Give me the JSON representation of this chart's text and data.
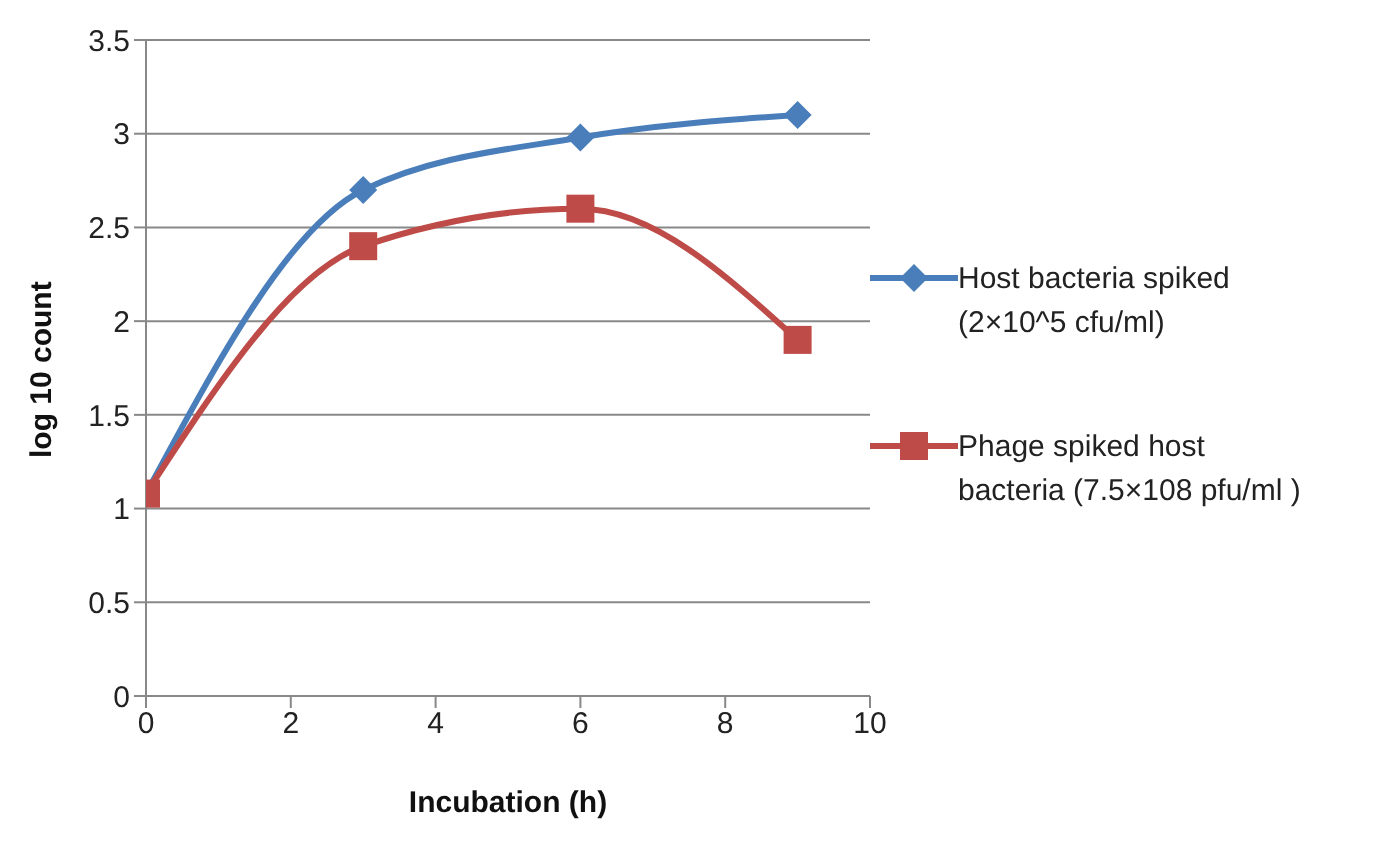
{
  "chart_data": {
    "type": "line",
    "xlabel": "Incubation (h)",
    "ylabel": "log 10 count",
    "x": [
      0,
      3,
      6,
      9
    ],
    "series": [
      {
        "name": "Host bacteria spiked (2×10^5 cfu/ml)",
        "color": "#4a7ebb",
        "values": [
          1.08,
          2.7,
          2.98,
          3.1
        ],
        "marker": "diamond"
      },
      {
        "name": "Phage spiked host bacteria (7.5×108 pfu/ml )",
        "color": "#be4b48",
        "values": [
          1.08,
          2.4,
          2.6,
          1.9
        ],
        "marker": "square"
      }
    ],
    "xlim": [
      0,
      10
    ],
    "xticks": [
      0,
      2,
      4,
      6,
      8,
      10
    ],
    "ylim": [
      0,
      3.5
    ],
    "yticks": [
      0,
      0.5,
      1,
      1.5,
      2,
      2.5,
      3,
      3.5
    ],
    "grid": "y",
    "legend": "right",
    "line_style": "solid"
  }
}
